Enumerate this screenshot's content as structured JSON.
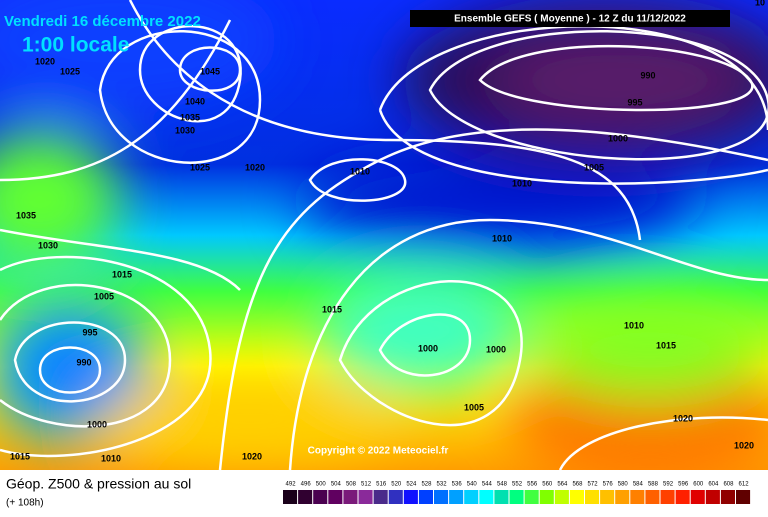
{
  "header": {
    "date": "Vendredi 16 décembre 2022",
    "time": "1:00 locale",
    "model": "Ensemble GEFS  ( Moyenne )  - 12 Z du 11/12/2022",
    "copyright": "Copyright © 2022 Meteociel.fr"
  },
  "isobar_labels": [
    1020,
    1025,
    1045,
    1040,
    1035,
    1030,
    1025,
    1020,
    1010,
    990,
    995,
    1000,
    1005,
    1010,
    1035,
    1030,
    1015,
    1005,
    1010,
    1015,
    995,
    990,
    1000,
    1000,
    1010,
    1015,
    1005,
    1000,
    1020,
    1020,
    1015,
    1010,
    1020,
    10
  ],
  "footer": {
    "title": "Géop. Z500 & pression au sol",
    "lead": "(+ 108h)"
  },
  "scale": {
    "values": [
      492,
      496,
      500,
      504,
      508,
      512,
      516,
      520,
      524,
      528,
      532,
      536,
      540,
      544,
      548,
      552,
      556,
      560,
      564,
      568,
      572,
      576,
      580,
      584,
      588,
      592,
      596,
      600,
      604,
      608,
      612
    ],
    "colors": [
      "#1a001a",
      "#300030",
      "#4a0050",
      "#600060",
      "#7a1a7a",
      "#8a2a9a",
      "#4a2a8a",
      "#3030c0",
      "#1010ff",
      "#0040ff",
      "#0070ff",
      "#00a0ff",
      "#00d0ff",
      "#00ffff",
      "#00e0b0",
      "#00ff80",
      "#40ff40",
      "#80ff00",
      "#c0ff00",
      "#ffff00",
      "#ffe000",
      "#ffc000",
      "#ffa000",
      "#ff8000",
      "#ff6000",
      "#ff4000",
      "#ff2000",
      "#e00000",
      "#c00000",
      "#900000",
      "#600000"
    ]
  }
}
